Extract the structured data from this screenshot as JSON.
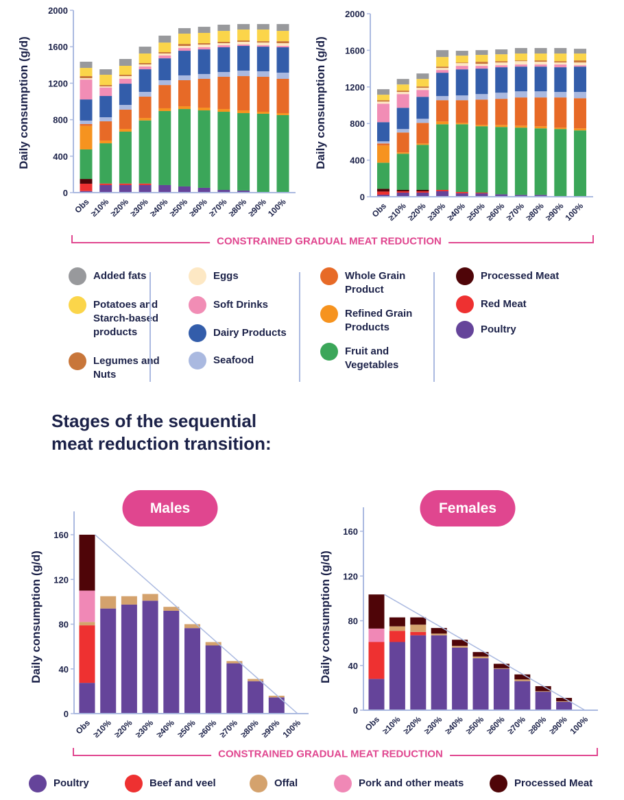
{
  "bracket_label": "CONSTRAINED GRADUAL MEAT REDUCTION",
  "section_title_line1": "Stages of the sequential",
  "section_title_line2": "meat reduction transition:",
  "panels": {
    "males": "Males",
    "females": "Females"
  },
  "colors": {
    "Added fats": "#98999C",
    "Potatoes and Starch-based products": "#FBD54A",
    "Legumes and Nuts": "#C8763A",
    "Eggs": "#FDE8C4",
    "Soft Drinks": "#F18DB5",
    "Dairy Products": "#335DAA",
    "Seafood": "#AAB9E0",
    "Whole Grain Product": "#E76A27",
    "Refined Grain Products": "#F6931F",
    "Fruit and Vegetables": "#3BA659",
    "Processed Meat": "#4F0508",
    "Red Meat": "#EE3131",
    "Poultry": "#65449A",
    "Beef and veel": "#EE3131",
    "Offal": "#D4A26D",
    "Pork and other meats": "#F088B6",
    "accent": "#E0468F",
    "axis": "#AAB9E0",
    "text": "#1B2148"
  },
  "legend_top": [
    [
      "Added fats",
      "Potatoes and Starch-based products",
      "Legumes and Nuts"
    ],
    [
      "Eggs",
      "Soft Drinks",
      "Dairy Products",
      "Seafood"
    ],
    [
      "Whole Grain Product",
      "Refined Grain Products",
      "Fruit and Vegetables"
    ],
    [
      "Processed Meat",
      "Red Meat",
      "Poultry"
    ]
  ],
  "legend_bottom": [
    "Poultry",
    "Beef and veel",
    "Offal",
    "Pork and other meats",
    "Processed Meat"
  ],
  "chart_data": [
    {
      "type": "bar",
      "stacked": true,
      "ylabel": "Daily consumption (g/d)",
      "ylim": [
        0,
        2000
      ],
      "yticks": [
        0,
        400,
        800,
        1200,
        1600,
        2000
      ],
      "categories": [
        "Obs",
        "≥10%",
        "≥20%",
        "≥30%",
        "≥40%",
        "≥50%",
        "≥60%",
        "≥70%",
        "≥80%",
        "≥90%",
        "100%"
      ],
      "series": [
        {
          "name": "Poultry",
          "values": [
            17,
            83,
            83,
            83,
            83,
            68,
            53,
            30,
            23,
            0,
            0
          ]
        },
        {
          "name": "Red Meat",
          "values": [
            81,
            17,
            17,
            17,
            0,
            0,
            0,
            0,
            0,
            0,
            0
          ]
        },
        {
          "name": "Processed Meat",
          "values": [
            52,
            0,
            0,
            0,
            0,
            0,
            0,
            0,
            0,
            0,
            0
          ]
        },
        {
          "name": "Fruit and Vegetables",
          "values": [
            324,
            441,
            569,
            692,
            812,
            849,
            849,
            857,
            849,
            865,
            850
          ]
        },
        {
          "name": "Refined Grain Products",
          "values": [
            258,
            30,
            30,
            27,
            30,
            30,
            30,
            30,
            30,
            22,
            22
          ]
        },
        {
          "name": "Whole Grain Product",
          "values": [
            20,
            211,
            211,
            234,
            255,
            286,
            316,
            354,
            376,
            384,
            376
          ]
        },
        {
          "name": "Seafood",
          "values": [
            38,
            45,
            52,
            52,
            53,
            53,
            53,
            52,
            60,
            60,
            68
          ]
        },
        {
          "name": "Dairy Products",
          "values": [
            232,
            233,
            233,
            248,
            240,
            270,
            270,
            271,
            271,
            270,
            278
          ]
        },
        {
          "name": "Soft Drinks",
          "values": [
            218,
            93,
            53,
            30,
            31,
            30,
            23,
            22,
            15,
            15,
            15
          ]
        },
        {
          "name": "Eggs",
          "values": [
            15,
            12,
            30,
            23,
            22,
            23,
            30,
            23,
            30,
            30,
            30
          ]
        },
        {
          "name": "Legumes and Nuts",
          "values": [
            23,
            15,
            15,
            15,
            15,
            22,
            15,
            15,
            15,
            15,
            22
          ]
        },
        {
          "name": "Potatoes and Starch-based products",
          "values": [
            90,
            113,
            98,
            105,
            105,
            113,
            113,
            120,
            120,
            128,
            113
          ]
        },
        {
          "name": "Added fats",
          "values": [
            68,
            60,
            75,
            75,
            76,
            60,
            67,
            68,
            60,
            60,
            75
          ]
        }
      ]
    },
    {
      "type": "bar",
      "stacked": true,
      "ylabel": "Daily consumption (g/d)",
      "ylim": [
        0,
        2000
      ],
      "yticks": [
        0,
        400,
        800,
        1200,
        1600,
        2000
      ],
      "categories": [
        "Obs",
        "≥10%",
        "≥20%",
        "≥30%",
        "≥40%",
        "≥50%",
        "≥60%",
        "≥70%",
        "≥80%",
        "≥90%",
        "100%"
      ],
      "series": [
        {
          "name": "Poultry",
          "values": [
            22,
            45,
            45,
            60,
            37,
            37,
            27,
            20,
            20,
            0,
            0
          ]
        },
        {
          "name": "Red Meat",
          "values": [
            35,
            15,
            15,
            15,
            15,
            8,
            0,
            0,
            0,
            0,
            0
          ]
        },
        {
          "name": "Processed Meat",
          "values": [
            30,
            15,
            15,
            0,
            0,
            0,
            0,
            0,
            0,
            0,
            0
          ]
        },
        {
          "name": "Fruit and Vegetables",
          "values": [
            285,
            395,
            492,
            717,
            740,
            725,
            735,
            735,
            727,
            740,
            725
          ]
        },
        {
          "name": "Refined Grain Products",
          "values": [
            188,
            15,
            15,
            30,
            15,
            15,
            23,
            22,
            23,
            15,
            22
          ]
        },
        {
          "name": "Whole Grain Product",
          "values": [
            22,
            217,
            225,
            233,
            248,
            277,
            285,
            308,
            315,
            330,
            330
          ]
        },
        {
          "name": "Seafood",
          "values": [
            23,
            38,
            45,
            45,
            52,
            60,
            67,
            67,
            67,
            60,
            68
          ]
        },
        {
          "name": "Dairy Products",
          "values": [
            210,
            232,
            240,
            255,
            285,
            278,
            278,
            270,
            270,
            270,
            277
          ]
        },
        {
          "name": "Soft Drinks",
          "values": [
            202,
            150,
            75,
            30,
            38,
            30,
            22,
            23,
            23,
            30,
            15
          ]
        },
        {
          "name": "Eggs",
          "values": [
            23,
            23,
            23,
            22,
            30,
            22,
            30,
            37,
            30,
            22,
            30
          ]
        },
        {
          "name": "Legumes and Nuts",
          "values": [
            15,
            15,
            15,
            15,
            7,
            23,
            15,
            8,
            15,
            15,
            23
          ]
        },
        {
          "name": "Potatoes and Starch-based products",
          "values": [
            60,
            67,
            82,
            105,
            75,
            75,
            75,
            75,
            75,
            83,
            75
          ]
        },
        {
          "name": "Added fats",
          "values": [
            60,
            60,
            60,
            75,
            53,
            52,
            53,
            60,
            60,
            60,
            52
          ]
        }
      ]
    },
    {
      "type": "bar",
      "stacked": true,
      "title": "Males",
      "ylabel": "Daily consumption (g/d)",
      "ylim": [
        0,
        160
      ],
      "yticks": [
        0,
        40,
        80,
        120,
        160
      ],
      "categories": [
        "Obs",
        "≥10%",
        "≥20%",
        "≥30%",
        "≥40%",
        "≥50%",
        "≥60%",
        "≥70%",
        "≥80%",
        "≥90%",
        "100%"
      ],
      "series": [
        {
          "name": "Poultry",
          "values": [
            27.5,
            94,
            97.5,
            101,
            92,
            76.5,
            61,
            45,
            29,
            14.5,
            0
          ]
        },
        {
          "name": "Beef and veel",
          "values": [
            51.5,
            0,
            0,
            0,
            0,
            0,
            0,
            0,
            0,
            0,
            0
          ]
        },
        {
          "name": "Offal",
          "values": [
            3,
            11,
            7.5,
            6,
            3.5,
            3.5,
            3,
            2,
            2,
            1.5,
            0
          ]
        },
        {
          "name": "Pork and other meats",
          "values": [
            28,
            0,
            0,
            0,
            0,
            0,
            0,
            0,
            0,
            0,
            0
          ]
        },
        {
          "name": "Processed Meat",
          "values": [
            50,
            0,
            0,
            0,
            0,
            0,
            0,
            0,
            0,
            0,
            0
          ]
        }
      ],
      "reference_line": {
        "from": [
          "Obs",
          160
        ],
        "to": [
          "100%",
          0
        ]
      }
    },
    {
      "type": "bar",
      "stacked": true,
      "title": "Females",
      "ylabel": "Daily consumption (g/d)",
      "ylim": [
        0,
        160
      ],
      "yticks": [
        0,
        40,
        80,
        120,
        160
      ],
      "categories": [
        "Obs",
        "≥10%",
        "≥20%",
        "≥30%",
        "≥40%",
        "≥50%",
        "≥60%",
        "≥70%",
        "≥80%",
        "≥90%",
        "100%"
      ],
      "series": [
        {
          "name": "Poultry",
          "values": [
            28,
            61,
            67,
            67,
            56,
            46.5,
            37,
            26,
            16.5,
            7.5,
            0
          ]
        },
        {
          "name": "Beef and veel",
          "values": [
            33,
            10,
            3,
            0,
            0,
            0,
            0,
            0,
            0,
            0,
            0
          ]
        },
        {
          "name": "Offal",
          "values": [
            0,
            4,
            6.5,
            1.5,
            1.5,
            1.5,
            0.5,
            1.5,
            0.5,
            0.5,
            0
          ]
        },
        {
          "name": "Pork and other meats",
          "values": [
            12,
            0,
            0,
            0,
            0,
            0,
            0,
            0,
            0,
            0,
            0
          ]
        },
        {
          "name": "Processed Meat",
          "values": [
            30.5,
            8,
            6.5,
            5,
            5.5,
            4,
            4,
            4.5,
            4.5,
            3,
            0
          ]
        }
      ],
      "reference_line": {
        "from": [
          "Obs",
          103.5
        ],
        "to": [
          "100%",
          0
        ]
      }
    }
  ]
}
